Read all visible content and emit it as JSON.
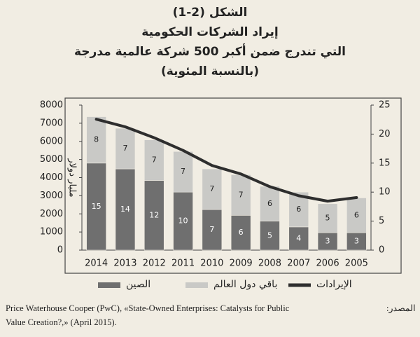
{
  "chart_data": {
    "type": "bar",
    "stacked": true,
    "title": [
      "الشكل (2-1)",
      "إيراد الشركات الحكومية",
      "التي تندرج ضمن أكبر 500 شركة عالمية مدرجة",
      "(بالنسبة المئوية)"
    ],
    "ylabel": "مليار دولار",
    "categories": [
      "2014",
      "2013",
      "2012",
      "2011",
      "2010",
      "2009",
      "2008",
      "2007",
      "2006",
      "2005"
    ],
    "series": [
      {
        "name": "الصين",
        "color": "#6f6f6f",
        "axis": "y2",
        "label_color": "#ffffff",
        "values": [
          15,
          14,
          12,
          10,
          7,
          6,
          5,
          4,
          3,
          3
        ]
      },
      {
        "name": "باقي دول العالم",
        "color": "#c9c9c6",
        "axis": "y2",
        "label_color": "#222222",
        "values": [
          8,
          7,
          7,
          7,
          7,
          7,
          6,
          6,
          5,
          6
        ]
      },
      {
        "name": "الإيرادات",
        "color": "#2e2e2e",
        "type": "line",
        "values": [
          7220,
          6800,
          6200,
          5500,
          4670,
          4200,
          3500,
          3000,
          2700,
          2900
        ]
      }
    ],
    "ylim": [
      0,
      8000
    ],
    "yticks": [
      0,
      1000,
      2000,
      3000,
      4000,
      5000,
      6000,
      7000,
      8000
    ],
    "y2lim": [
      0,
      25
    ],
    "y2ticks": [
      0,
      5,
      10,
      15,
      20,
      25
    ],
    "grid": false,
    "legend": "bottom",
    "source_label": "المصدر:",
    "source": [
      "Price Waterhouse Cooper (PwC), «State-Owned Enterprises: Catalysts for Public",
      "Value Creation?,» (April 2015)."
    ]
  }
}
